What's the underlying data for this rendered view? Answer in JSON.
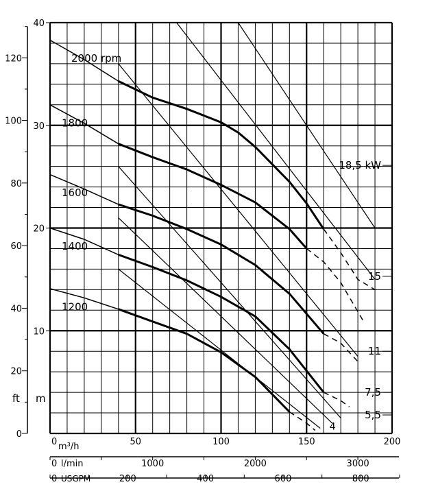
{
  "chart_data": {
    "type": "line",
    "title": "",
    "xlabel": "m³/h",
    "ylabel": "m",
    "ylabel_alt": "ft",
    "xlim": [
      0,
      200
    ],
    "ylim": [
      0,
      40
    ],
    "grid": true,
    "x_ticks": [
      0,
      50,
      100,
      150,
      200
    ],
    "y_ticks": [
      10,
      20,
      30,
      40
    ],
    "ft_ticks": [
      0,
      20,
      40,
      60,
      80,
      100,
      120
    ],
    "lmin_axis": {
      "unit": "l/min",
      "ticks": [
        "1000",
        "2000",
        "3000"
      ],
      "values": [
        1000,
        2000,
        3000
      ]
    },
    "usgpm_axis": {
      "unit": "USGPM",
      "ticks": [
        "200",
        "400",
        "600",
        "800"
      ],
      "values": [
        200,
        400,
        600,
        800
      ]
    },
    "speed_curves": [
      {
        "name": "2000 rpm",
        "solid": [
          [
            0,
            38.3
          ],
          [
            20,
            36.4
          ],
          [
            40,
            34.3
          ],
          [
            60,
            32.7
          ],
          [
            80,
            31.6
          ],
          [
            100,
            30.3
          ],
          [
            110,
            29.3
          ],
          [
            120,
            27.9
          ],
          [
            130,
            26.2
          ],
          [
            140,
            24.5
          ],
          [
            150,
            22.4
          ],
          [
            160,
            19.9
          ]
        ],
        "dashed": [
          [
            160,
            19.9
          ],
          [
            170,
            17.6
          ],
          [
            180,
            15.0
          ],
          [
            190,
            14.0
          ]
        ]
      },
      {
        "name": "1800",
        "solid": [
          [
            0,
            32.0
          ],
          [
            20,
            30.2
          ],
          [
            40,
            28.2
          ],
          [
            60,
            26.9
          ],
          [
            80,
            25.7
          ],
          [
            100,
            24.2
          ],
          [
            120,
            22.5
          ],
          [
            140,
            19.9
          ],
          [
            150,
            18.0
          ]
        ],
        "dashed": [
          [
            150,
            18.0
          ],
          [
            160,
            16.7
          ],
          [
            170,
            14.7
          ],
          [
            183,
            11.0
          ]
        ]
      },
      {
        "name": "1600",
        "solid": [
          [
            0,
            25.2
          ],
          [
            20,
            23.8
          ],
          [
            40,
            22.3
          ],
          [
            60,
            21.2
          ],
          [
            80,
            19.9
          ],
          [
            100,
            18.4
          ],
          [
            120,
            16.4
          ],
          [
            140,
            13.6
          ],
          [
            160,
            9.7
          ]
        ],
        "dashed": [
          [
            160,
            9.7
          ],
          [
            170,
            8.8
          ],
          [
            180,
            7.0
          ]
        ]
      },
      {
        "name": "1400",
        "solid": [
          [
            0,
            20.0
          ],
          [
            20,
            18.9
          ],
          [
            40,
            17.4
          ],
          [
            60,
            16.2
          ],
          [
            80,
            14.9
          ],
          [
            100,
            13.3
          ],
          [
            120,
            11.4
          ],
          [
            140,
            8.2
          ],
          [
            160,
            4.0
          ]
        ],
        "dashed": [
          [
            160,
            4.0
          ],
          [
            170,
            3.2
          ],
          [
            175,
            2.6
          ]
        ]
      },
      {
        "name": "1200",
        "solid": [
          [
            0,
            14.1
          ],
          [
            20,
            13.2
          ],
          [
            40,
            12.1
          ],
          [
            60,
            10.9
          ],
          [
            80,
            9.7
          ],
          [
            100,
            7.9
          ],
          [
            120,
            5.5
          ],
          [
            140,
            2.1
          ]
        ],
        "dashed": [
          [
            140,
            2.1
          ],
          [
            150,
            1.0
          ],
          [
            155,
            0.3
          ]
        ]
      }
    ],
    "power_lines": [
      {
        "name": "18,5 kW",
        "points": [
          [
            110,
            40
          ],
          [
            190,
            20
          ]
        ],
        "label_at": [
          200,
          26.1
        ]
      },
      {
        "name": "15",
        "points": [
          [
            74,
            40
          ],
          [
            190,
            15
          ]
        ],
        "label_at": [
          200,
          15.3
        ]
      },
      {
        "name": "11",
        "points": [
          [
            40,
            36
          ],
          [
            180,
            7.5
          ]
        ],
        "label_at": [
          200,
          8.0
        ]
      },
      {
        "name": "7,5",
        "points": [
          [
            40,
            26
          ],
          [
            170,
            1.5
          ]
        ],
        "label_at": [
          200,
          4.0
        ]
      },
      {
        "name": "5,5",
        "points": [
          [
            40,
            21
          ],
          [
            165,
            1.0
          ]
        ],
        "label_at": [
          200,
          1.8
        ]
      },
      {
        "name": "4",
        "points": [
          [
            40,
            16
          ],
          [
            158,
            0.5
          ]
        ],
        "label_at": [
          161,
          0.7
        ]
      }
    ]
  }
}
